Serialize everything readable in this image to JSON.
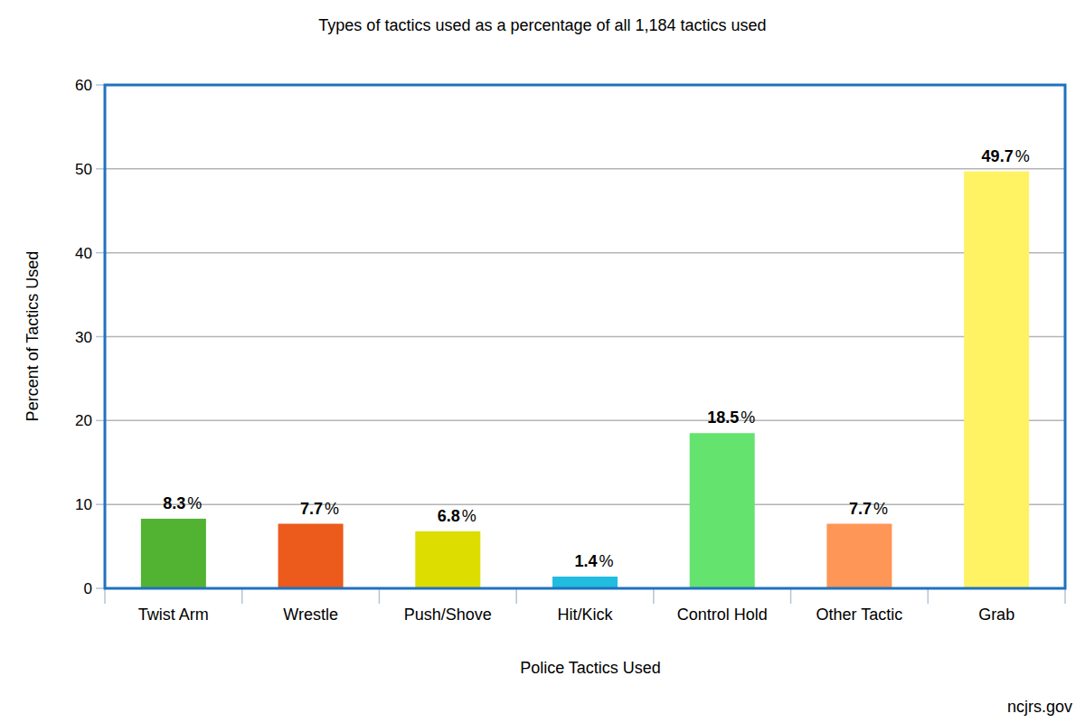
{
  "chart_data": {
    "type": "bar",
    "title": "Types of tactics used as a percentage of all 1,184 tactics used",
    "x_label": "Police Tactics Used",
    "y_label": "Percent of Tactics Used",
    "annotations": [
      "ncjrs.gov"
    ],
    "categories": [
      "Twist Arm",
      "Wrestle",
      "Push/Shove",
      "Hit/Kick",
      "Control Hold",
      "Other Tactic",
      "Grab"
    ],
    "values": [
      8.3,
      7.7,
      6.8,
      1.4,
      18.5,
      7.7,
      49.7
    ],
    "value_labels": [
      "8.3%",
      "7.7%",
      "6.8%",
      "1.4%",
      "18.5%",
      "7.7%",
      "49.7%"
    ],
    "colors": [
      "#52b332",
      "#ec5a1c",
      "#dddd00",
      "#22bce0",
      "#64e36e",
      "#fe9657",
      "#fff263"
    ],
    "ylim": [
      0,
      60
    ],
    "yticks": [
      0,
      10,
      20,
      30,
      40,
      50,
      60
    ],
    "grid": true,
    "data_labels": true
  }
}
